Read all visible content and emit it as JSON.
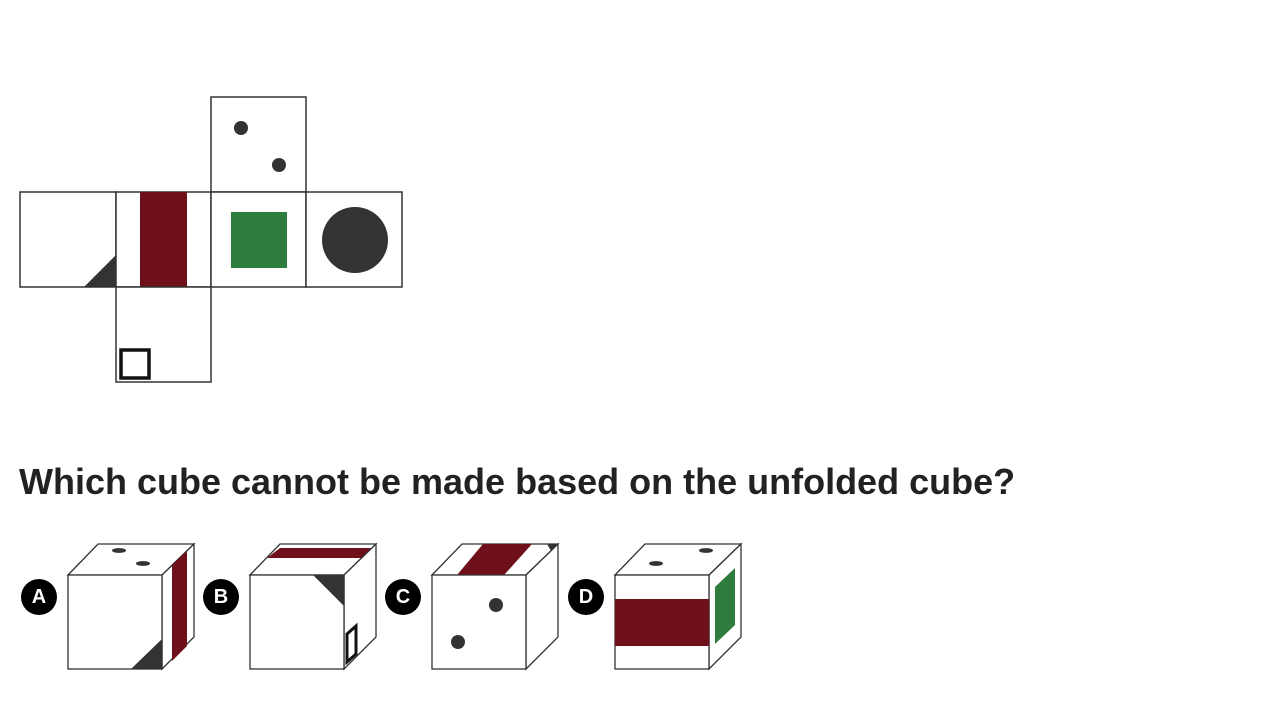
{
  "question": "Which cube cannot be made based on the unfolded cube?",
  "colors": {
    "dark_red": "#6f0f1a",
    "green": "#2e7d3d",
    "dark_gray": "#333333",
    "outline": "#333333"
  },
  "options": [
    {
      "label": "A"
    },
    {
      "label": "B"
    },
    {
      "label": "C"
    },
    {
      "label": "D"
    }
  ]
}
